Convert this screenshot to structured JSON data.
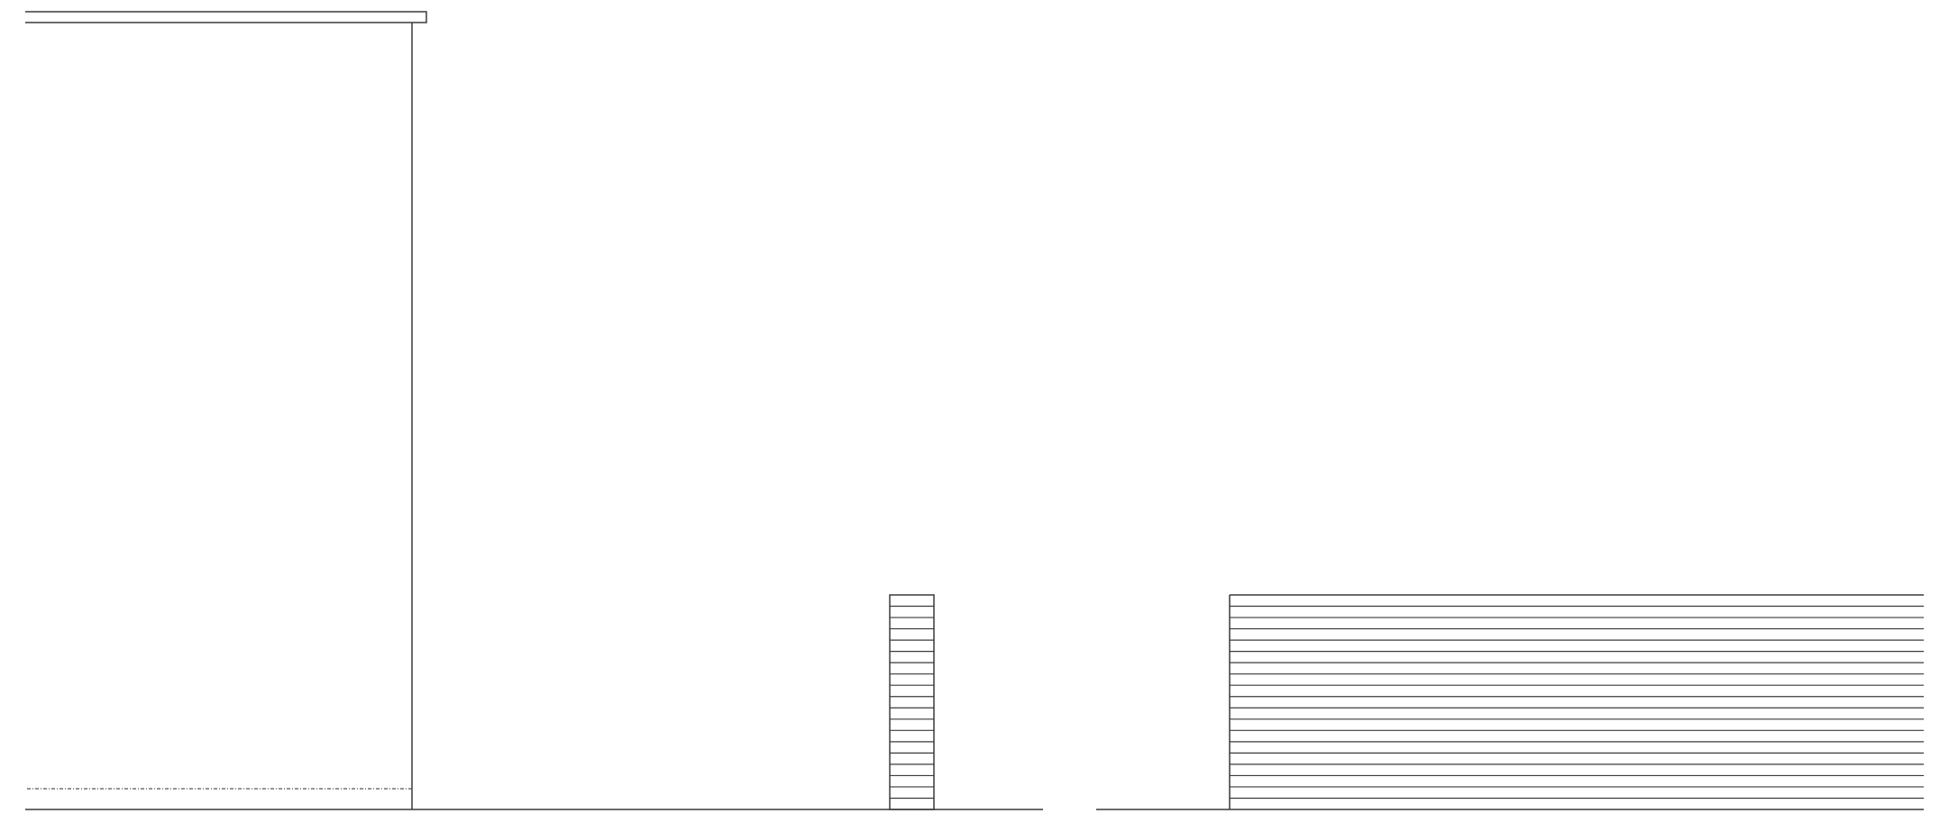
{
  "drawing": {
    "background": "#ffffff",
    "line_color": "#3a3a3a",
    "dash_color": "#555555"
  },
  "left_elevation": {
    "stack_courses": 19
  },
  "right_elevation": {
    "wall_courses": 19
  }
}
